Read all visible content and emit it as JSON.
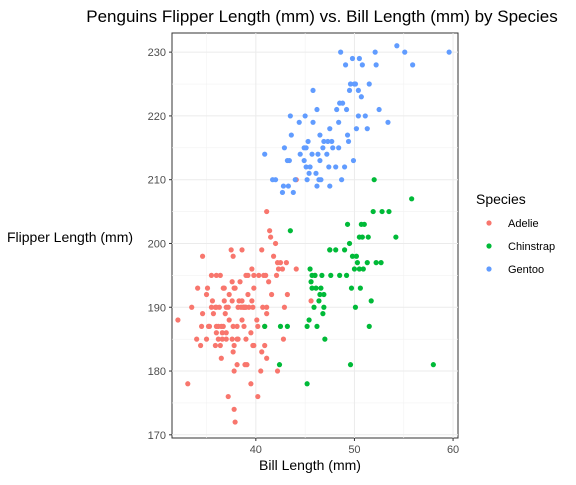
{
  "chart_data": {
    "type": "scatter",
    "title": "Penguins Flipper Length (mm) vs. Bill Length (mm) by Species",
    "xlabel": "Bill Length (mm)",
    "ylabel": "Flipper Length (mm)",
    "xlim": [
      31.5,
      60.5
    ],
    "ylim": [
      169.5,
      233
    ],
    "x_ticks": [
      40,
      50,
      60
    ],
    "y_ticks": [
      170,
      180,
      190,
      200,
      210,
      220,
      230
    ],
    "grid": true,
    "legend": {
      "title": "Species",
      "position": "right"
    },
    "series": [
      {
        "name": "Adelie",
        "color": "#F8766D",
        "points": [
          [
            32.1,
            188
          ],
          [
            33.1,
            178
          ],
          [
            33.5,
            190
          ],
          [
            34.0,
            185
          ],
          [
            34.1,
            193
          ],
          [
            34.4,
            184
          ],
          [
            34.5,
            187
          ],
          [
            34.6,
            189
          ],
          [
            34.6,
            198
          ],
          [
            35.0,
            192
          ],
          [
            35.0,
            185
          ],
          [
            35.1,
            193
          ],
          [
            35.2,
            187
          ],
          [
            35.3,
            187
          ],
          [
            35.5,
            190
          ],
          [
            35.5,
            195
          ],
          [
            35.6,
            191
          ],
          [
            35.7,
            189
          ],
          [
            35.9,
            190
          ],
          [
            35.9,
            184
          ],
          [
            36.0,
            186
          ],
          [
            36.0,
            195
          ],
          [
            36.0,
            187
          ],
          [
            36.0,
            190
          ],
          [
            36.2,
            187
          ],
          [
            36.2,
            185
          ],
          [
            36.3,
            190
          ],
          [
            36.4,
            184
          ],
          [
            36.4,
            195
          ],
          [
            36.5,
            182
          ],
          [
            36.5,
            187
          ],
          [
            36.6,
            185
          ],
          [
            36.6,
            186
          ],
          [
            36.7,
            193
          ],
          [
            36.7,
            187
          ],
          [
            36.8,
            193
          ],
          [
            36.9,
            189
          ],
          [
            37.0,
            185
          ],
          [
            37.0,
            190
          ],
          [
            37.2,
            176
          ],
          [
            37.2,
            190
          ],
          [
            37.3,
            192
          ],
          [
            37.3,
            188
          ],
          [
            37.5,
            199
          ],
          [
            37.6,
            194
          ],
          [
            37.6,
            185
          ],
          [
            37.6,
            191
          ],
          [
            37.7,
            198
          ],
          [
            37.7,
            187
          ],
          [
            37.7,
            183
          ],
          [
            37.8,
            174
          ],
          [
            37.8,
            180
          ],
          [
            37.8,
            193
          ],
          [
            37.8,
            184
          ],
          [
            37.9,
            193
          ],
          [
            37.9,
            172
          ],
          [
            38.1,
            181
          ],
          [
            38.1,
            187
          ],
          [
            38.1,
            185
          ],
          [
            38.2,
            185
          ],
          [
            38.3,
            191
          ],
          [
            38.5,
            190
          ],
          [
            38.6,
            199
          ],
          [
            38.6,
            188
          ],
          [
            38.6,
            191
          ],
          [
            38.7,
            190
          ],
          [
            38.8,
            190
          ],
          [
            38.8,
            187
          ],
          [
            38.9,
            190
          ],
          [
            38.9,
            181
          ],
          [
            39.0,
            185
          ],
          [
            39.0,
            195
          ],
          [
            39.0,
            190
          ],
          [
            39.1,
            181
          ],
          [
            39.2,
            195
          ],
          [
            39.3,
            190
          ],
          [
            39.5,
            186
          ],
          [
            39.5,
            178
          ],
          [
            39.6,
            191
          ],
          [
            39.6,
            196
          ],
          [
            39.7,
            184
          ],
          [
            39.7,
            190
          ],
          [
            39.8,
            184
          ],
          [
            39.8,
            195
          ],
          [
            40.1,
            188
          ],
          [
            40.2,
            176
          ],
          [
            40.2,
            187
          ],
          [
            40.3,
            195
          ],
          [
            40.5,
            180
          ],
          [
            40.6,
            183
          ],
          [
            40.6,
            199
          ],
          [
            40.7,
            190
          ],
          [
            40.8,
            195
          ],
          [
            40.9,
            184
          ],
          [
            41.0,
            195
          ],
          [
            41.1,
            182
          ],
          [
            41.1,
            189
          ],
          [
            41.1,
            190
          ],
          [
            41.3,
            194
          ],
          [
            41.4,
            202
          ],
          [
            41.5,
            201
          ],
          [
            41.6,
            192
          ],
          [
            41.8,
            198
          ],
          [
            42.0,
            200
          ],
          [
            42.1,
            195
          ],
          [
            42.2,
            180
          ],
          [
            42.2,
            197
          ],
          [
            42.3,
            196
          ],
          [
            42.5,
            197
          ],
          [
            42.7,
            196
          ],
          [
            42.8,
            185
          ],
          [
            42.9,
            190
          ],
          [
            43.1,
            197
          ],
          [
            43.2,
            192
          ],
          [
            44.1,
            196
          ],
          [
            44.1,
            210
          ],
          [
            45.6,
            191
          ],
          [
            46.0,
            195
          ],
          [
            41.1,
            205
          ],
          [
            40.9,
            187
          ],
          [
            39.2,
            192
          ],
          [
            37.0,
            186
          ],
          [
            36.8,
            191
          ],
          [
            38.4,
            194
          ],
          [
            38.2,
            190
          ],
          [
            39.8,
            193
          ]
        ]
      },
      {
        "name": "Chinstrap",
        "color": "#00BA38",
        "points": [
          [
            40.9,
            187
          ],
          [
            42.4,
            181
          ],
          [
            42.5,
            187
          ],
          [
            43.2,
            187
          ],
          [
            43.5,
            202
          ],
          [
            45.2,
            178
          ],
          [
            45.2,
            187
          ],
          [
            45.4,
            188
          ],
          [
            45.5,
            196
          ],
          [
            45.6,
            194
          ],
          [
            45.7,
            195
          ],
          [
            45.7,
            193
          ],
          [
            45.9,
            190
          ],
          [
            46.0,
            195
          ],
          [
            46.1,
            193
          ],
          [
            46.2,
            187
          ],
          [
            46.4,
            191
          ],
          [
            46.5,
            192
          ],
          [
            46.6,
            193
          ],
          [
            46.7,
            195
          ],
          [
            46.8,
            189
          ],
          [
            46.9,
            192
          ],
          [
            47.0,
            185
          ],
          [
            47.5,
            199
          ],
          [
            47.6,
            195
          ],
          [
            48.1,
            199
          ],
          [
            48.5,
            195
          ],
          [
            49.0,
            199
          ],
          [
            49.2,
            195
          ],
          [
            49.3,
            203
          ],
          [
            49.5,
            200
          ],
          [
            49.6,
            181
          ],
          [
            49.7,
            193
          ],
          [
            50.0,
            196
          ],
          [
            50.1,
            190
          ],
          [
            50.2,
            198
          ],
          [
            50.3,
            197
          ],
          [
            50.5,
            196
          ],
          [
            50.6,
            193
          ],
          [
            50.7,
            203
          ],
          [
            50.8,
            201
          ],
          [
            50.9,
            196
          ],
          [
            51.0,
            203
          ],
          [
            51.3,
            197
          ],
          [
            51.4,
            201
          ],
          [
            51.5,
            187
          ],
          [
            51.7,
            191
          ],
          [
            51.9,
            205
          ],
          [
            52.0,
            210
          ],
          [
            52.2,
            197
          ],
          [
            52.7,
            197
          ],
          [
            52.8,
            205
          ],
          [
            53.5,
            205
          ],
          [
            54.2,
            201
          ],
          [
            55.8,
            207
          ],
          [
            58.0,
            181
          ],
          [
            49.8,
            198
          ],
          [
            50.5,
            201
          ],
          [
            47.5,
            199
          ],
          [
            46.9,
            190
          ]
        ]
      },
      {
        "name": "Gentoo",
        "color": "#619CFF",
        "points": [
          [
            40.9,
            214
          ],
          [
            41.7,
            210
          ],
          [
            42.0,
            210
          ],
          [
            42.7,
            208
          ],
          [
            42.8,
            209
          ],
          [
            42.9,
            215
          ],
          [
            43.2,
            213
          ],
          [
            43.3,
            209
          ],
          [
            43.4,
            213
          ],
          [
            43.5,
            220
          ],
          [
            43.6,
            217
          ],
          [
            43.8,
            208
          ],
          [
            44.0,
            210
          ],
          [
            44.4,
            219
          ],
          [
            44.5,
            214
          ],
          [
            44.9,
            213
          ],
          [
            45.0,
            220
          ],
          [
            45.1,
            215
          ],
          [
            45.2,
            210
          ],
          [
            45.3,
            216
          ],
          [
            45.4,
            211
          ],
          [
            45.5,
            212
          ],
          [
            45.7,
            214
          ],
          [
            45.8,
            219
          ],
          [
            46.1,
            211
          ],
          [
            46.2,
            209
          ],
          [
            46.3,
            214
          ],
          [
            46.4,
            210
          ],
          [
            46.5,
            213
          ],
          [
            46.6,
            210
          ],
          [
            46.8,
            215
          ],
          [
            46.9,
            216
          ],
          [
            47.2,
            214
          ],
          [
            47.3,
            216
          ],
          [
            47.4,
            212
          ],
          [
            47.5,
            209
          ],
          [
            47.7,
            216
          ],
          [
            47.8,
            215
          ],
          [
            48.1,
            212
          ],
          [
            48.2,
            221
          ],
          [
            48.4,
            215
          ],
          [
            48.5,
            222
          ],
          [
            48.6,
            230
          ],
          [
            48.7,
            210
          ],
          [
            48.8,
            222
          ],
          [
            49.0,
            212
          ],
          [
            49.1,
            228
          ],
          [
            49.2,
            221
          ],
          [
            49.3,
            217
          ],
          [
            49.4,
            216
          ],
          [
            49.5,
            224
          ],
          [
            49.6,
            225
          ],
          [
            49.8,
            229
          ],
          [
            50.0,
            225
          ],
          [
            50.1,
            225
          ],
          [
            50.2,
            218
          ],
          [
            50.4,
            224
          ],
          [
            50.5,
            229
          ],
          [
            50.7,
            223
          ],
          [
            50.8,
            228
          ],
          [
            51.1,
            220
          ],
          [
            51.3,
            218
          ],
          [
            51.5,
            225
          ],
          [
            52.1,
            230
          ],
          [
            52.2,
            228
          ],
          [
            52.5,
            221
          ],
          [
            53.4,
            219
          ],
          [
            54.3,
            231
          ],
          [
            55.1,
            230
          ],
          [
            55.9,
            228
          ],
          [
            59.6,
            230
          ],
          [
            45.8,
            224
          ],
          [
            47.5,
            218
          ],
          [
            46.2,
            221
          ],
          [
            44.9,
            215
          ],
          [
            48.4,
            219
          ],
          [
            49.9,
            213
          ],
          [
            50.4,
            220
          ],
          [
            46.5,
            217
          ],
          [
            45.1,
            212
          ]
        ]
      }
    ]
  }
}
